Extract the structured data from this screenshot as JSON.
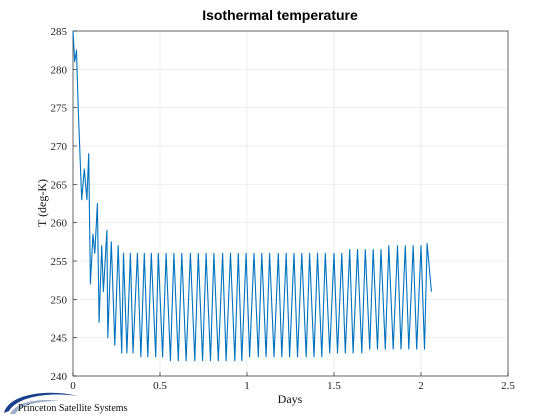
{
  "chart_data": {
    "type": "line",
    "title": "Isothermal temperature",
    "xlabel": "Days",
    "ylabel": "T (deg-K)",
    "xlim": [
      0,
      2.5
    ],
    "ylim": [
      240,
      285
    ],
    "x_ticks": [
      0,
      0.5,
      1,
      1.5,
      2,
      2.5
    ],
    "x_tick_labels": [
      "0",
      "0.5",
      "1",
      "1.5",
      "2",
      "2.5"
    ],
    "y_ticks": [
      240,
      245,
      250,
      255,
      260,
      265,
      270,
      275,
      280,
      285
    ],
    "y_tick_labels": [
      "240",
      "245",
      "250",
      "255",
      "260",
      "265",
      "270",
      "275",
      "280",
      "285"
    ],
    "grid": true,
    "series": [
      {
        "color": "#0072BD",
        "x": [
          0,
          0.01,
          0.02,
          0.03,
          0.05,
          0.065,
          0.08,
          0.09,
          0.1,
          0.115,
          0.125,
          0.14,
          0.15,
          0.165,
          0.175,
          0.195,
          0.2,
          0.22,
          0.24,
          0.26,
          0.28,
          0.29,
          0.31,
          0.33,
          0.345,
          0.37,
          0.39,
          0.41,
          0.43,
          0.45,
          0.475,
          0.49,
          0.515,
          0.535,
          0.56,
          0.58,
          0.605,
          0.625,
          0.65,
          0.675,
          0.7,
          0.72,
          0.745,
          0.765,
          0.79,
          0.81,
          0.835,
          0.86,
          0.88,
          0.905,
          0.93,
          0.95,
          0.97,
          0.995,
          1.015,
          1.04,
          1.065,
          1.085,
          1.11,
          1.13,
          1.155,
          1.18,
          1.2,
          1.225,
          1.245,
          1.27,
          1.29,
          1.315,
          1.34,
          1.36,
          1.385,
          1.405,
          1.43,
          1.45,
          1.475,
          1.5,
          1.52,
          1.545,
          1.565,
          1.59,
          1.61,
          1.635,
          1.66,
          1.68,
          1.705,
          1.725,
          1.75,
          1.77,
          1.795,
          1.815,
          1.84,
          1.865,
          1.885,
          1.91,
          1.93,
          1.955,
          1.975,
          2.0,
          2.02,
          2.035,
          2.06
        ],
        "y": [
          285,
          281,
          282.5,
          275,
          263,
          267,
          263,
          269,
          252,
          258.5,
          256,
          262.5,
          247,
          257,
          251,
          259,
          245,
          257.5,
          244,
          257,
          243,
          256,
          243,
          256,
          243,
          256,
          242.5,
          256,
          242.5,
          256,
          242.5,
          256,
          242.5,
          256,
          242,
          256,
          242,
          256,
          242,
          256,
          242,
          256,
          242,
          256,
          242,
          256,
          242,
          256,
          242,
          256,
          242,
          256,
          242,
          256,
          242.5,
          256,
          242.5,
          256,
          242.5,
          256,
          242.5,
          256,
          242.5,
          256,
          242.5,
          256,
          242.5,
          256,
          242.5,
          256,
          242.5,
          256,
          242.5,
          256,
          243,
          256,
          243,
          256,
          243,
          256.5,
          243,
          256.5,
          243,
          256.5,
          243.5,
          256.5,
          243.5,
          256.5,
          243.5,
          257,
          243.5,
          257,
          243.5,
          257,
          243.5,
          257,
          243.5,
          257,
          243.5,
          257.3,
          251
        ]
      }
    ]
  },
  "logo": {
    "text": "Princeton Satellite Systems",
    "colors": [
      "#1a3f8a",
      "#9fb0c8"
    ]
  }
}
